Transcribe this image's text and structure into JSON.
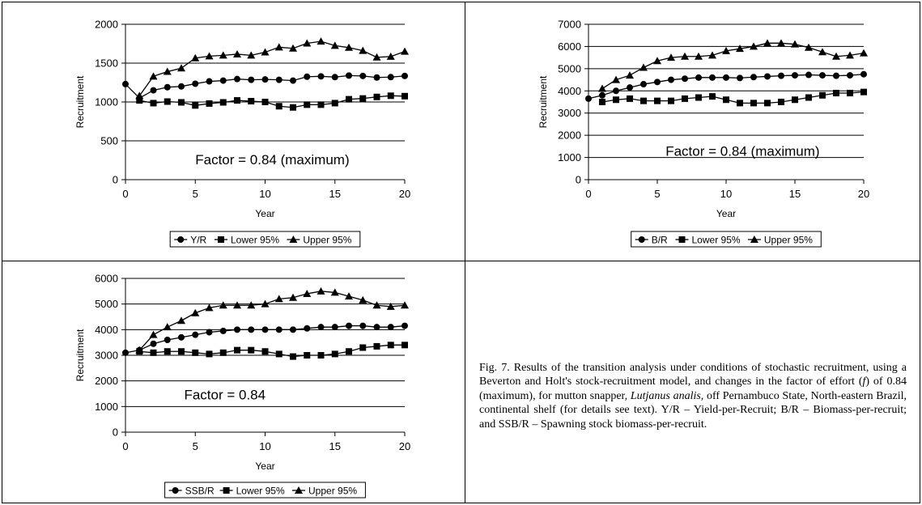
{
  "chart_data": [
    {
      "type": "line",
      "ylabel": "Recruitment",
      "xlabel": "Year",
      "xlim": [
        0,
        20
      ],
      "ylim": [
        0,
        2000
      ],
      "xticks": [
        0,
        5,
        10,
        15,
        20
      ],
      "yticks": [
        0,
        500,
        1000,
        1500,
        2000
      ],
      "grid": "horizontal",
      "annotation": "Factor = 0.84 (maximum)",
      "legend_position": "bottom",
      "x": [
        0,
        1,
        2,
        3,
        4,
        5,
        6,
        7,
        8,
        9,
        10,
        11,
        12,
        13,
        14,
        15,
        16,
        17,
        18,
        19,
        20
      ],
      "series": [
        {
          "name": "Y/R",
          "marker": "circle",
          "values": [
            1230,
            1050,
            1150,
            1190,
            1200,
            1235,
            1265,
            1275,
            1295,
            1285,
            1290,
            1285,
            1275,
            1325,
            1330,
            1320,
            1340,
            1335,
            1315,
            1320,
            1335
          ]
        },
        {
          "name": "Lower 95%",
          "marker": "square",
          "values": [
            null,
            1020,
            985,
            1005,
            995,
            955,
            980,
            995,
            1020,
            1010,
            1000,
            945,
            930,
            965,
            965,
            985,
            1035,
            1045,
            1065,
            1080,
            1075
          ]
        },
        {
          "name": "Upper 95%",
          "marker": "triangle",
          "values": [
            null,
            1080,
            1330,
            1390,
            1435,
            1565,
            1590,
            1600,
            1615,
            1600,
            1640,
            1705,
            1690,
            1755,
            1780,
            1725,
            1700,
            1660,
            1575,
            1585,
            1650
          ]
        }
      ]
    },
    {
      "type": "line",
      "ylabel": "Recruitment",
      "xlabel": "Year",
      "xlim": [
        0,
        20
      ],
      "ylim": [
        0,
        7000
      ],
      "xticks": [
        0,
        5,
        10,
        15,
        20
      ],
      "yticks": [
        0,
        1000,
        2000,
        3000,
        4000,
        5000,
        6000,
        7000
      ],
      "grid": "horizontal",
      "annotation": "Factor = 0.84 (maximum)",
      "legend_position": "bottom",
      "x": [
        0,
        1,
        2,
        3,
        4,
        5,
        6,
        7,
        8,
        9,
        10,
        11,
        12,
        13,
        14,
        15,
        16,
        17,
        18,
        19,
        20
      ],
      "series": [
        {
          "name": "B/R",
          "marker": "circle",
          "values": [
            3650,
            3800,
            4000,
            4150,
            4300,
            4400,
            4500,
            4550,
            4600,
            4600,
            4600,
            4580,
            4620,
            4650,
            4680,
            4700,
            4720,
            4700,
            4680,
            4700,
            4750
          ]
        },
        {
          "name": "Lower 95%",
          "marker": "square",
          "values": [
            null,
            3500,
            3600,
            3650,
            3550,
            3550,
            3550,
            3650,
            3700,
            3750,
            3600,
            3450,
            3450,
            3450,
            3500,
            3600,
            3700,
            3800,
            3900,
            3900,
            3950
          ]
        },
        {
          "name": "Upper 95%",
          "marker": "triangle",
          "values": [
            null,
            4100,
            4500,
            4700,
            5050,
            5350,
            5500,
            5550,
            5550,
            5600,
            5800,
            5900,
            6000,
            6150,
            6150,
            6100,
            5950,
            5750,
            5550,
            5600,
            5700
          ]
        }
      ]
    },
    {
      "type": "line",
      "ylabel": "Recruitment",
      "xlabel": "Year",
      "xlim": [
        0,
        20
      ],
      "ylim": [
        0,
        6000
      ],
      "xticks": [
        0,
        5,
        10,
        15,
        20
      ],
      "yticks": [
        0,
        1000,
        2000,
        3000,
        4000,
        5000,
        6000
      ],
      "grid": "horizontal",
      "annotation": "Factor = 0.84",
      "legend_position": "bottom",
      "x": [
        0,
        1,
        2,
        3,
        4,
        5,
        6,
        7,
        8,
        9,
        10,
        11,
        12,
        13,
        14,
        15,
        16,
        17,
        18,
        19,
        20
      ],
      "series": [
        {
          "name": "SSB/R",
          "marker": "circle",
          "values": [
            3100,
            3200,
            3450,
            3600,
            3700,
            3800,
            3900,
            3950,
            4000,
            4000,
            4000,
            4000,
            4000,
            4050,
            4100,
            4100,
            4150,
            4150,
            4100,
            4100,
            4150
          ]
        },
        {
          "name": "Lower 95%",
          "marker": "square",
          "values": [
            null,
            3150,
            3100,
            3150,
            3150,
            3100,
            3050,
            3100,
            3200,
            3200,
            3150,
            3050,
            2950,
            3000,
            3000,
            3050,
            3150,
            3300,
            3350,
            3400,
            3400
          ]
        },
        {
          "name": "Upper 95%",
          "marker": "triangle",
          "values": [
            null,
            3200,
            3800,
            4100,
            4350,
            4650,
            4850,
            4950,
            4950,
            4950,
            5000,
            5200,
            5250,
            5400,
            5500,
            5450,
            5300,
            5150,
            4950,
            4900,
            4950
          ]
        }
      ]
    }
  ],
  "caption": {
    "intro": "Fig. 7. Results of the transition analysis under conditions of stochastic recruitment, using a Beverton and Holt's stock-recruitment model, and changes in the factor of effort (",
    "f": "f",
    "mid": ") of 0.84 (maximum), for mutton snapper, ",
    "species": "Lutjanus analis,",
    "outro": " off Pernambuco State, North-eastern Brazil, continental shelf (for details see text). Y/R – Yield-per-Recruit; B/R – Biomass-per-recruit; and SSB/R – Spawning stock biomass-per-recruit."
  }
}
